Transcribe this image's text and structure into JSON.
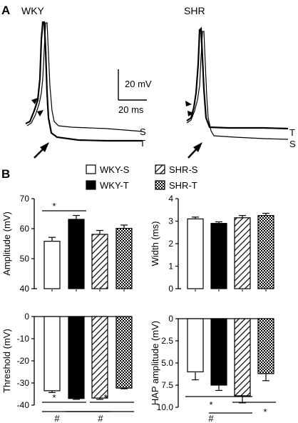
{
  "panels": {
    "a": {
      "letter": "A",
      "wky_title": "WKY",
      "shr_title": "SHR",
      "scalebar": {
        "voltage": "20 mV",
        "time": "20 ms"
      },
      "wky_trace_labels": [
        "S",
        "T"
      ],
      "shr_trace_labels": [
        "T",
        "S"
      ]
    },
    "b": {
      "letter": "B",
      "legend": [
        {
          "label": "WKY-S",
          "fill": "white"
        },
        {
          "label": "WKY-T",
          "fill": "black"
        },
        {
          "label": "SHR-S",
          "fill": "hatch"
        },
        {
          "label": "SHR-T",
          "fill": "checker"
        }
      ]
    }
  },
  "sig_marks": {
    "star": "*",
    "hash": "#"
  },
  "chart_data": [
    {
      "type": "bar",
      "categories": [
        "WKY-S",
        "WKY-T",
        "SHR-S",
        "SHR-T"
      ],
      "values": [
        55.8,
        63.1,
        58.1,
        60.1
      ],
      "errors": [
        1.3,
        1.3,
        1.3,
        1.1
      ],
      "ylabel": "Amplitude (mV)",
      "ylim": [
        40,
        70
      ],
      "yticks": [
        "40",
        "50",
        "60",
        "70"
      ],
      "yticks_values": [
        40,
        50,
        60,
        70
      ],
      "significance": [
        {
          "from": 0,
          "to": 1,
          "mark": "*"
        }
      ]
    },
    {
      "type": "bar",
      "categories": [
        "WKY-S",
        "WKY-T",
        "SHR-S",
        "SHR-T"
      ],
      "values": [
        3.1,
        2.9,
        3.15,
        3.25
      ],
      "errors": [
        0.08,
        0.07,
        0.1,
        0.1
      ],
      "ylabel": "Width (ms)",
      "ylim": [
        0,
        4
      ],
      "yticks": [
        "0",
        "1",
        "2",
        "3",
        "4"
      ],
      "yticks_values": [
        0,
        1,
        2,
        3,
        4
      ]
    },
    {
      "type": "bar",
      "categories": [
        "WKY-S",
        "WKY-T",
        "SHR-S",
        "SHR-T"
      ],
      "values": [
        -33.5,
        -37.0,
        -36.8,
        -32.3
      ],
      "errors": [
        0.8,
        0.4,
        0.6,
        0.3
      ],
      "ylabel": "Threshold (mV)",
      "ylim": [
        -40,
        0
      ],
      "yticks": [
        "0",
        "-10",
        "-20",
        "-30",
        "-40"
      ],
      "yticks_values": [
        0,
        -10,
        -20,
        -30,
        -40
      ],
      "significance": [
        {
          "from": 0,
          "to": 1,
          "mark": "*"
        },
        {
          "from": 2,
          "to": 3,
          "mark": "*"
        },
        {
          "from": 0,
          "to": 2,
          "mark": "#"
        },
        {
          "from": 1,
          "to": 3,
          "mark": "#"
        }
      ]
    },
    {
      "type": "bar",
      "categories": [
        "WKY-S",
        "WKY-T",
        "SHR-S",
        "SHR-T"
      ],
      "values": [
        6.0,
        7.5,
        8.7,
        6.2
      ],
      "errors": [
        0.9,
        0.6,
        0.8,
        0.8
      ],
      "ylabel": "HAP amplitude (mV)",
      "ylim": [
        0,
        10
      ],
      "inverted": true,
      "yticks": [
        "0",
        "2.5",
        "5.0",
        "7.5",
        "10.0"
      ],
      "yticks_values": [
        0,
        2.5,
        5,
        7.5,
        10
      ],
      "significance": [
        {
          "from": 0,
          "to": 2,
          "mark": "*"
        },
        {
          "from": 1,
          "to": 2,
          "mark": "#"
        },
        {
          "from": 2,
          "to": 3,
          "mark": "*"
        }
      ]
    }
  ]
}
